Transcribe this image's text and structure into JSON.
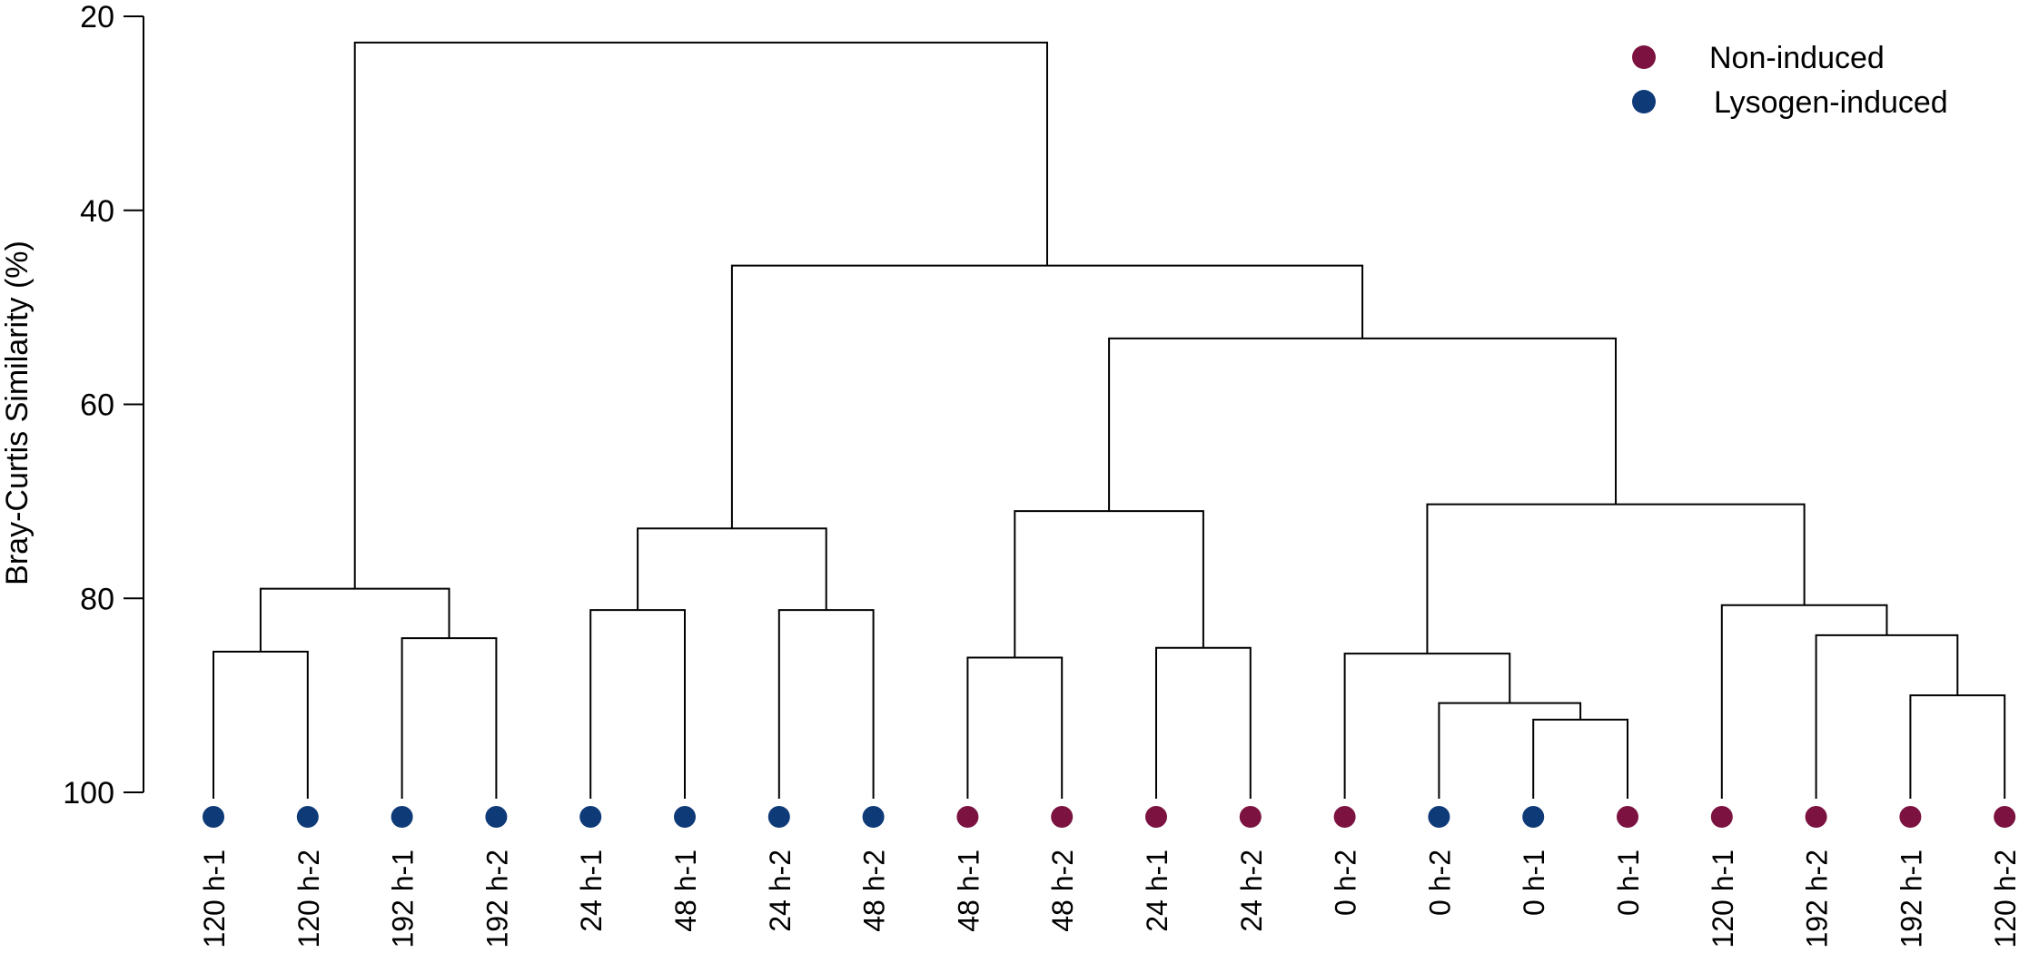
{
  "chart_data": {
    "type": "dendrogram",
    "title": "",
    "xlabel": "",
    "ylabel": "Bray-Curtis Similarity (%)",
    "ylim": [
      20,
      100
    ],
    "y_ticks": [
      20,
      40,
      60,
      80,
      100
    ],
    "grid": false,
    "legend_position": "top-right",
    "legend": [
      {
        "label": "Non-induced",
        "color": "#7b1240"
      },
      {
        "label": "Lysogen-induced",
        "color": "#0e3a78"
      }
    ],
    "leaves": [
      {
        "label": "120 h-1",
        "group": "Lysogen-induced"
      },
      {
        "label": "120 h-2",
        "group": "Lysogen-induced"
      },
      {
        "label": "192 h-1",
        "group": "Lysogen-induced"
      },
      {
        "label": "192 h-2",
        "group": "Lysogen-induced"
      },
      {
        "label": "24 h-1",
        "group": "Lysogen-induced"
      },
      {
        "label": "48 h-1",
        "group": "Lysogen-induced"
      },
      {
        "label": "24 h-2",
        "group": "Lysogen-induced"
      },
      {
        "label": "48 h-2",
        "group": "Lysogen-induced"
      },
      {
        "label": "48 h-1",
        "group": "Non-induced"
      },
      {
        "label": "48 h-2",
        "group": "Non-induced"
      },
      {
        "label": "24 h-1",
        "group": "Non-induced"
      },
      {
        "label": "24 h-2",
        "group": "Non-induced"
      },
      {
        "label": "0 h-2",
        "group": "Non-induced"
      },
      {
        "label": "0 h-2",
        "group": "Lysogen-induced"
      },
      {
        "label": "0 h-1",
        "group": "Lysogen-induced"
      },
      {
        "label": "0 h-1",
        "group": "Non-induced"
      },
      {
        "label": "120 h-1",
        "group": "Non-induced"
      },
      {
        "label": "192 h-2",
        "group": "Non-induced"
      },
      {
        "label": "192 h-1",
        "group": "Non-induced"
      },
      {
        "label": "120 h-2",
        "group": "Non-induced"
      }
    ],
    "merges": [
      {
        "id": "c1",
        "children": [
          "0",
          "1"
        ],
        "similarity": 85.5
      },
      {
        "id": "c2",
        "children": [
          "2",
          "3"
        ],
        "similarity": 84.1
      },
      {
        "id": "c3",
        "children": [
          "c1",
          "c2"
        ],
        "similarity": 79.0
      },
      {
        "id": "c4",
        "children": [
          "4",
          "5"
        ],
        "similarity": 81.2
      },
      {
        "id": "c5",
        "children": [
          "6",
          "7"
        ],
        "similarity": 81.2
      },
      {
        "id": "c6",
        "children": [
          "c4",
          "c5"
        ],
        "similarity": 72.8
      },
      {
        "id": "c7",
        "children": [
          "8",
          "9"
        ],
        "similarity": 86.1
      },
      {
        "id": "c8",
        "children": [
          "10",
          "11"
        ],
        "similarity": 85.1
      },
      {
        "id": "c9",
        "children": [
          "c7",
          "c8"
        ],
        "similarity": 71.0
      },
      {
        "id": "c10",
        "children": [
          "14",
          "15"
        ],
        "similarity": 92.5
      },
      {
        "id": "c11",
        "children": [
          "13",
          "c10"
        ],
        "similarity": 90.8
      },
      {
        "id": "c12",
        "children": [
          "12",
          "c11"
        ],
        "similarity": 85.7
      },
      {
        "id": "c13",
        "children": [
          "18",
          "19"
        ],
        "similarity": 90.0
      },
      {
        "id": "c14",
        "children": [
          "17",
          "c13"
        ],
        "similarity": 83.8
      },
      {
        "id": "c15",
        "children": [
          "16",
          "c14"
        ],
        "similarity": 80.7
      },
      {
        "id": "c16",
        "children": [
          "c12",
          "c15"
        ],
        "similarity": 70.3
      },
      {
        "id": "c17",
        "children": [
          "c9",
          "c16"
        ],
        "similarity": 53.2
      },
      {
        "id": "c18",
        "children": [
          "c6",
          "c17"
        ],
        "similarity": 45.7
      },
      {
        "id": "c19",
        "children": [
          "c3",
          "c18"
        ],
        "similarity": 22.7
      }
    ]
  }
}
